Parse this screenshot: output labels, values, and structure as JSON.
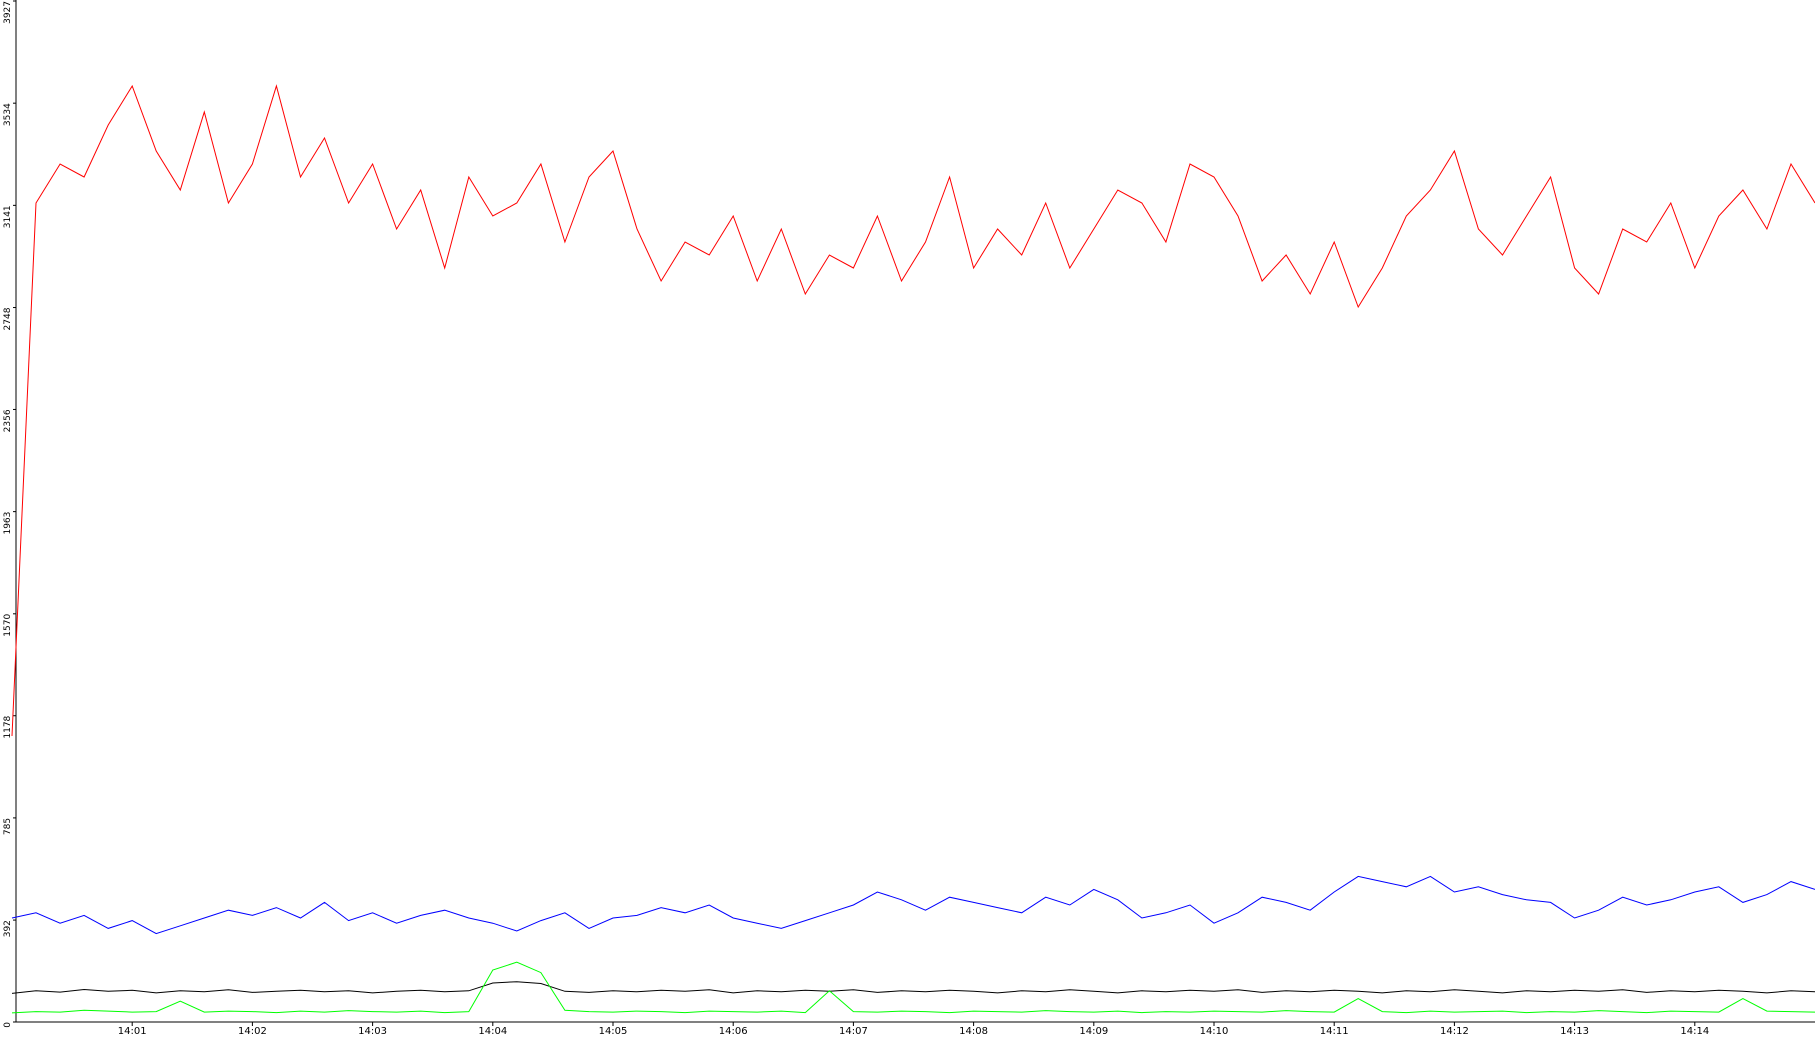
{
  "chart_data": {
    "type": "line",
    "x": [
      0,
      0.2,
      0.4,
      0.6,
      0.8,
      1,
      1.2,
      1.4,
      1.6,
      1.8,
      2,
      2.2,
      2.4,
      2.6,
      2.8,
      3,
      3.2,
      3.4,
      3.6,
      3.8,
      4,
      4.2,
      4.4,
      4.6,
      4.8,
      5,
      5.2,
      5.4,
      5.6,
      5.8,
      6,
      6.2,
      6.4,
      6.6,
      6.8,
      7,
      7.2,
      7.4,
      7.6,
      7.8,
      8,
      8.2,
      8.4,
      8.6,
      8.8,
      9,
      9.2,
      9.4,
      9.6,
      9.8,
      10,
      10.2,
      10.4,
      10.6,
      10.8,
      11,
      11.2,
      11.4,
      11.6,
      11.8,
      12,
      12.2,
      12.4,
      12.6,
      12.8,
      13,
      13.2,
      13.4,
      13.6,
      13.8,
      14,
      14.2,
      14.4,
      14.6,
      14.8,
      15
    ],
    "series": [
      {
        "color": "#ff0000",
        "values": [
          1100,
          3150,
          3300,
          3250,
          3450,
          3600,
          3350,
          3200,
          3500,
          3150,
          3300,
          3600,
          3250,
          3400,
          3150,
          3300,
          3050,
          3200,
          2900,
          3250,
          3100,
          3150,
          3300,
          3000,
          3250,
          3350,
          3050,
          2850,
          3000,
          2950,
          3100,
          2850,
          3050,
          2800,
          2950,
          2900,
          3100,
          2850,
          3000,
          3250,
          2900,
          3050,
          2950,
          3150,
          2900,
          3050,
          3200,
          3150,
          3000,
          3300,
          3250,
          3100,
          2850,
          2950,
          2800,
          3000,
          2750,
          2900,
          3100,
          3200,
          3350,
          3050,
          2950,
          3100,
          3250,
          2900,
          2800,
          3050,
          3000,
          3150,
          2900,
          3100,
          3200,
          3050,
          3300,
          3150
        ]
      },
      {
        "color": "#0000ff",
        "values": [
          400,
          420,
          380,
          410,
          360,
          390,
          340,
          370,
          400,
          430,
          410,
          440,
          400,
          460,
          390,
          420,
          380,
          410,
          430,
          400,
          380,
          350,
          390,
          420,
          360,
          400,
          410,
          440,
          420,
          450,
          400,
          380,
          360,
          390,
          420,
          450,
          500,
          470,
          430,
          480,
          460,
          440,
          420,
          480,
          450,
          510,
          470,
          400,
          420,
          450,
          380,
          420,
          480,
          460,
          430,
          500,
          560,
          540,
          520,
          560,
          500,
          520,
          490,
          470,
          460,
          400,
          430,
          480,
          450,
          470,
          500,
          520,
          460,
          490,
          540,
          510
        ]
      },
      {
        "color": "#000000",
        "values": [
          110,
          120,
          115,
          125,
          118,
          122,
          112,
          120,
          116,
          124,
          114,
          118,
          122,
          116,
          120,
          112,
          118,
          122,
          116,
          120,
          150,
          155,
          148,
          118,
          114,
          120,
          116,
          122,
          118,
          124,
          112,
          120,
          116,
          122,
          118,
          124,
          114,
          120,
          116,
          122,
          118,
          112,
          120,
          116,
          124,
          118,
          112,
          120,
          116,
          122,
          118,
          124,
          114,
          120,
          116,
          122,
          118,
          112,
          120,
          116,
          124,
          118,
          112,
          120,
          116,
          122,
          118,
          124,
          114,
          120,
          116,
          122,
          118,
          112,
          120,
          116
        ]
      },
      {
        "color": "#00ff00",
        "values": [
          35,
          40,
          38,
          45,
          42,
          38,
          40,
          80,
          38,
          42,
          40,
          36,
          42,
          38,
          44,
          40,
          38,
          42,
          36,
          40,
          200,
          230,
          190,
          45,
          40,
          38,
          42,
          40,
          36,
          42,
          40,
          38,
          42,
          36,
          120,
          40,
          38,
          42,
          40,
          36,
          42,
          40,
          38,
          44,
          40,
          38,
          42,
          36,
          40,
          38,
          42,
          40,
          38,
          44,
          40,
          38,
          90,
          40,
          36,
          42,
          38,
          40,
          42,
          36,
          40,
          38,
          44,
          40,
          36,
          42,
          40,
          38,
          90,
          42,
          40,
          38
        ]
      }
    ],
    "xlim": [
      0,
      15
    ],
    "xticks": [
      {
        "value": 1,
        "label": "14:01"
      },
      {
        "value": 2,
        "label": "14:02"
      },
      {
        "value": 3,
        "label": "14:03"
      },
      {
        "value": 4,
        "label": "14:04"
      },
      {
        "value": 5,
        "label": "14:05"
      },
      {
        "value": 6,
        "label": "14:06"
      },
      {
        "value": 7,
        "label": "14:07"
      },
      {
        "value": 8,
        "label": "14:08"
      },
      {
        "value": 9,
        "label": "14:09"
      },
      {
        "value": 10,
        "label": "14:10"
      },
      {
        "value": 11,
        "label": "14:11"
      },
      {
        "value": 12,
        "label": "14:12"
      },
      {
        "value": 13,
        "label": "14:13"
      },
      {
        "value": 14,
        "label": "14:14"
      }
    ],
    "ylim": [
      0,
      3927
    ],
    "yticks": [
      0,
      392,
      785,
      1178,
      1570,
      1963,
      2356,
      2748,
      3141,
      3534,
      3927
    ],
    "grid": false
  }
}
